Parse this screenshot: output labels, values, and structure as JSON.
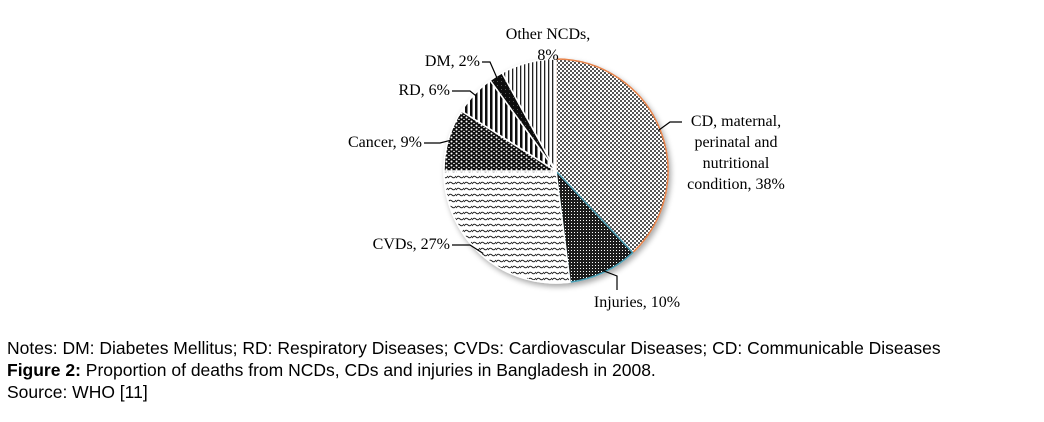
{
  "chart_data": {
    "type": "pie",
    "title": "",
    "start": "12 o'clock",
    "direction": "clockwise",
    "slices": [
      {
        "key": "cd",
        "name": "CD, maternal, perinatal and nutritional condition",
        "value": 38,
        "label_lines": [
          "CD, maternal,",
          "perinatal and",
          "nutritional",
          "condition, 38%"
        ],
        "pattern": "checker",
        "edge_color": "#e8834a"
      },
      {
        "key": "injuries",
        "name": "Injuries",
        "value": 10,
        "label_lines": [
          "Injuries, 10%"
        ],
        "pattern": "dense-dots",
        "edge_color": "#4a9fb5"
      },
      {
        "key": "cvds",
        "name": "CVDs",
        "value": 27,
        "label_lines": [
          "CVDs, 27%"
        ],
        "pattern": "zigzag",
        "edge_color": "#ffffff"
      },
      {
        "key": "cancer",
        "name": "Cancer",
        "value": 9,
        "label_lines": [
          "Cancer, 9%"
        ],
        "pattern": "dark-dots",
        "edge_color": "#ffffff"
      },
      {
        "key": "rd",
        "name": "RD",
        "value": 6,
        "label_lines": [
          "RD, 6%"
        ],
        "pattern": "thick-vertical",
        "edge_color": "#ffffff"
      },
      {
        "key": "dm",
        "name": "DM",
        "value": 2,
        "label_lines": [
          "DM, 2%"
        ],
        "pattern": "solid-black",
        "edge_color": "#ffffff"
      },
      {
        "key": "other",
        "name": "Other NCDs",
        "value": 8,
        "label_lines": [
          "Other NCDs,",
          "8%"
        ],
        "pattern": "thin-vertical",
        "edge_color": "#ffffff"
      }
    ],
    "legend": "none (data labels with leader lines)"
  },
  "captions": {
    "notes": "Notes: DM: Diabetes Mellitus; RD: Respiratory Diseases; CVDs: Cardiovascular Diseases; CD: Communicable Diseases",
    "figure_label": "Figure 2:",
    "figure_text": " Proportion of deaths from NCDs, CDs and injuries in Bangladesh in 2008.",
    "source": "Source: WHO [11]"
  }
}
